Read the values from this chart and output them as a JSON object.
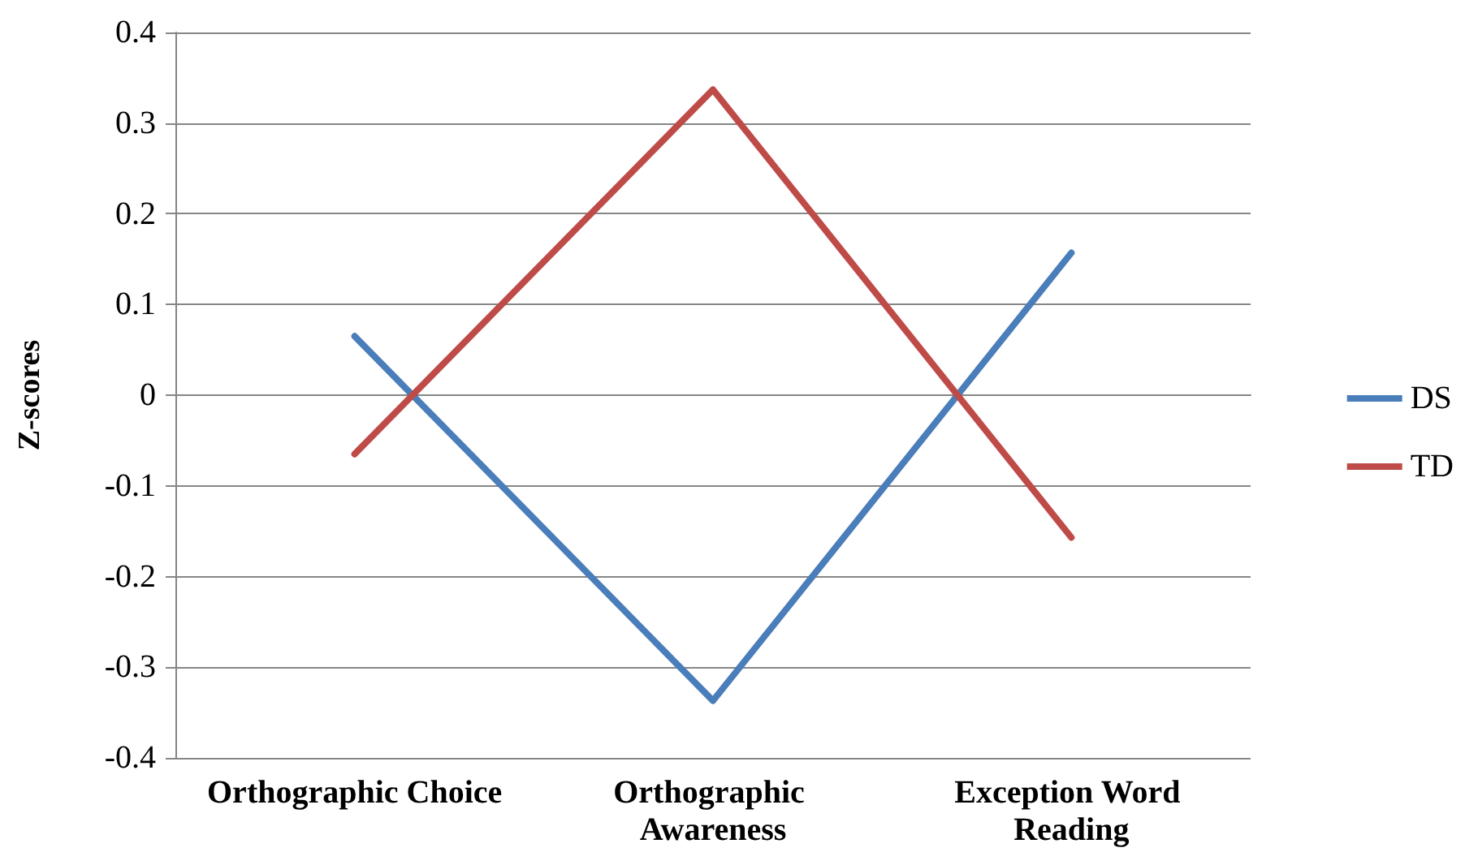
{
  "chart_data": {
    "type": "line",
    "ylabel": "Z-scores",
    "categories": [
      "Orthographic Choice",
      "Orthographic Awareness",
      "Exception Word Reading"
    ],
    "series": [
      {
        "name": "DS",
        "color": "#4a7ebb",
        "values": [
          0.065,
          -0.337,
          0.157
        ]
      },
      {
        "name": "TD",
        "color": "#be4b48",
        "values": [
          -0.065,
          0.337,
          -0.157
        ]
      }
    ],
    "ylim": [
      -0.4,
      0.4
    ],
    "yticks": [
      -0.4,
      -0.3,
      -0.2,
      -0.1,
      0,
      0.1,
      0.2,
      0.3,
      0.4
    ],
    "grid": "y",
    "legend": "right",
    "marker": "none",
    "line_style": "solid"
  }
}
